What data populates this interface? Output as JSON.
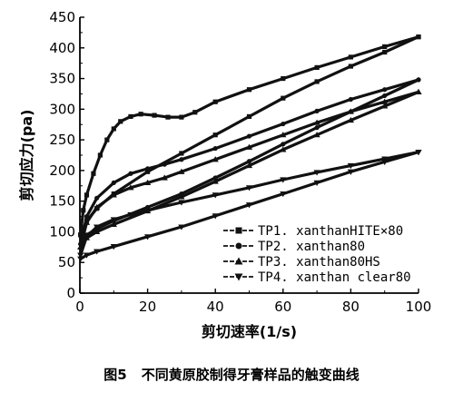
{
  "caption": {
    "number": "图5",
    "text": "不同黄原胶制得牙膏样品的触变曲线"
  },
  "chart_data": {
    "type": "line",
    "xlabel": "剪切速率(1/s)",
    "ylabel": "剪切应力(pa)",
    "xlim": [
      0,
      100
    ],
    "ylim": [
      0,
      450
    ],
    "xticks": [
      0,
      20,
      40,
      60,
      80,
      100
    ],
    "yticks": [
      0,
      50,
      100,
      150,
      200,
      250,
      300,
      350,
      400,
      450
    ],
    "legend_position": "bottom-right",
    "series": [
      {
        "name": "TP1. xanthanHITE×80",
        "marker": "square",
        "color": "#111111",
        "up": {
          "x": [
            0.2,
            1,
            2,
            4,
            6,
            8,
            10,
            12,
            15,
            18,
            22,
            26,
            30,
            34,
            40,
            50,
            60,
            70,
            80,
            90,
            100
          ],
          "y": [
            95,
            135,
            160,
            195,
            225,
            250,
            268,
            280,
            288,
            292,
            290,
            287,
            287,
            295,
            312,
            332,
            350,
            368,
            385,
            402,
            418
          ]
        },
        "down": {
          "x": [
            100,
            90,
            80,
            70,
            60,
            50,
            40,
            30,
            20,
            10,
            5,
            2,
            0.2
          ],
          "y": [
            418,
            393,
            370,
            345,
            318,
            288,
            258,
            228,
            198,
            162,
            138,
            118,
            95
          ]
        }
      },
      {
        "name": "TP2. xanthan80",
        "marker": "circle",
        "color": "#111111",
        "up": {
          "x": [
            0.2,
            2,
            5,
            10,
            15,
            20,
            25,
            30,
            40,
            50,
            60,
            70,
            80,
            90,
            100
          ],
          "y": [
            80,
            125,
            155,
            180,
            195,
            203,
            210,
            218,
            236,
            256,
            276,
            297,
            316,
            332,
            348
          ]
        },
        "down": {
          "x": [
            100,
            90,
            80,
            70,
            60,
            50,
            40,
            30,
            20,
            10,
            5,
            2,
            0.2
          ],
          "y": [
            348,
            322,
            296,
            270,
            243,
            215,
            188,
            162,
            140,
            118,
            105,
            95,
            80
          ]
        }
      },
      {
        "name": "TP3. xanthan80HS",
        "marker": "triangle-up",
        "color": "#111111",
        "up": {
          "x": [
            0.2,
            2,
            5,
            10,
            15,
            20,
            25,
            30,
            40,
            50,
            60,
            70,
            80,
            90,
            100
          ],
          "y": [
            75,
            115,
            140,
            160,
            172,
            180,
            188,
            198,
            218,
            238,
            258,
            278,
            296,
            312,
            328
          ]
        },
        "down": {
          "x": [
            100,
            90,
            80,
            70,
            60,
            50,
            40,
            30,
            20,
            10,
            5,
            2,
            0.2
          ],
          "y": [
            328,
            305,
            282,
            258,
            234,
            208,
            182,
            157,
            134,
            112,
            100,
            90,
            75
          ]
        }
      },
      {
        "name": "TP4. xanthan clear80",
        "marker": "triangle-down",
        "color": "#111111",
        "up": {
          "x": [
            0.2,
            2,
            5,
            10,
            15,
            20,
            30,
            40,
            50,
            60,
            70,
            80,
            90,
            100
          ],
          "y": [
            62,
            92,
            108,
            120,
            128,
            135,
            148,
            160,
            172,
            185,
            197,
            208,
            219,
            230
          ]
        },
        "down": {
          "x": [
            100,
            90,
            80,
            70,
            60,
            50,
            40,
            30,
            20,
            10,
            5,
            2,
            0.2
          ],
          "y": [
            230,
            214,
            198,
            180,
            162,
            144,
            126,
            108,
            92,
            76,
            68,
            62,
            56
          ]
        }
      }
    ]
  }
}
